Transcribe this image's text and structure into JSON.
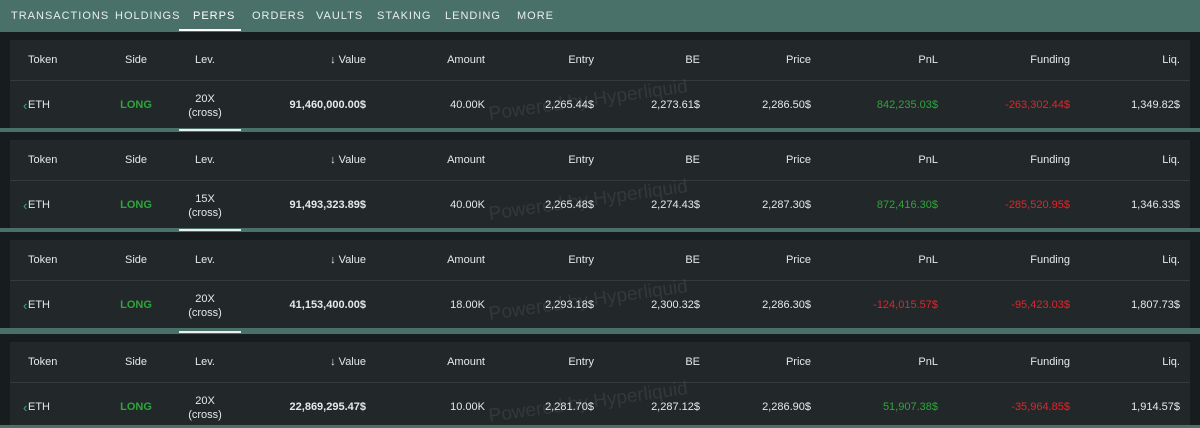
{
  "tabs": [
    "TRANSACTIONS",
    "HOLDINGS",
    "PERPS",
    "ORDERS",
    "VAULTS",
    "STAKING",
    "LENDING",
    "MORE"
  ],
  "active_tab": 2,
  "columns": [
    "Token",
    "Side",
    "Lev.",
    "Value",
    "Amount",
    "Entry",
    "BE",
    "Price",
    "PnL",
    "Funding",
    "Liq."
  ],
  "watermark": "Powered by Hyperliquid",
  "panels": [
    {
      "row": [
        "ETH",
        "LONG",
        [
          "20X",
          "(cross)"
        ],
        "91,460,000.00$",
        "40.00K",
        "2,265.44$",
        "2,273.61$",
        "2,286.50$",
        "842,235.03$",
        "-263,302.44$",
        "1,349.82$"
      ]
    },
    {
      "row": [
        "ETH",
        "LONG",
        [
          "15X",
          "(cross)"
        ],
        "91,493,323.89$",
        "40.00K",
        "2,265.48$",
        "2,274.43$",
        "2,287.30$",
        "872,416.30$",
        "-285,520.95$",
        "1,346.33$"
      ]
    },
    {
      "row": [
        "ETH",
        "LONG",
        [
          "20X",
          "(cross)"
        ],
        "41,153,400.00$",
        "18.00K",
        "2,293.18$",
        "2,300.32$",
        "2,286.30$",
        "-124,015.57$",
        "-95,423.03$",
        "1,807.73$"
      ]
    },
    {
      "row": [
        "ETH",
        "LONG",
        [
          "20X",
          "(cross)"
        ],
        "22,869,295.47$",
        "10.00K",
        "2,281.70$",
        "2,287.12$",
        "2,286.90$",
        "51,907.38$",
        "-35,964.85$",
        "1,914.57$"
      ]
    }
  ]
}
